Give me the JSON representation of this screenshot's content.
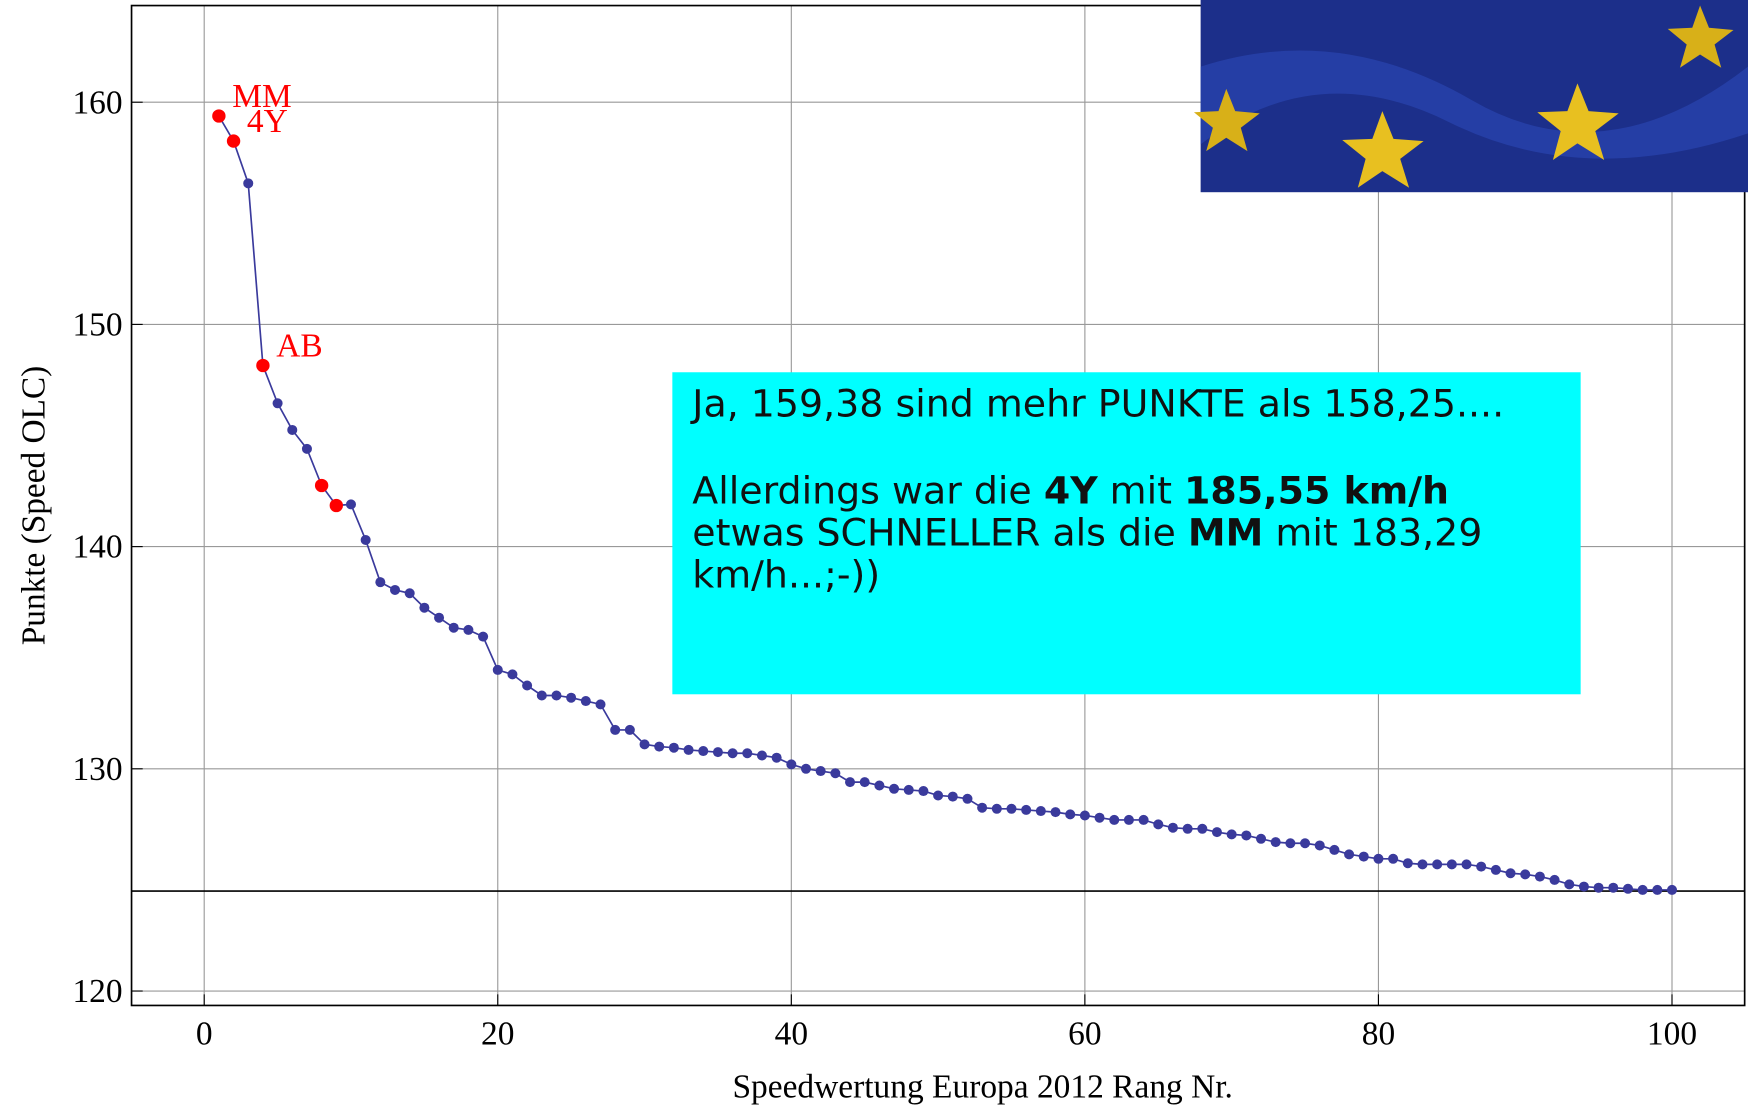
{
  "chart_data": {
    "type": "line",
    "xlabel": "Speedwertung Europa 2012 Rang Nr.",
    "ylabel": "Punkte (Speed OLC)",
    "x": [
      1,
      2,
      3,
      4,
      5,
      6,
      7,
      8,
      9,
      10,
      11,
      12,
      13,
      14,
      15,
      16,
      17,
      18,
      19,
      20,
      21,
      22,
      23,
      24,
      25,
      26,
      27,
      28,
      29,
      30,
      31,
      32,
      33,
      34,
      35,
      36,
      37,
      38,
      39,
      40,
      41,
      42,
      43,
      44,
      45,
      46,
      47,
      48,
      49,
      50,
      51,
      52,
      53,
      54,
      55,
      56,
      57,
      58,
      59,
      60,
      61,
      62,
      63,
      64,
      65,
      66,
      67,
      68,
      69,
      70,
      71,
      72,
      73,
      74,
      75,
      76,
      77,
      78,
      79,
      80,
      81,
      82,
      83,
      84,
      85,
      86,
      87,
      88,
      89,
      90,
      91,
      92,
      93,
      94,
      95,
      96,
      97,
      98,
      99,
      100
    ],
    "values": [
      159.38,
      158.25,
      156.35,
      148.15,
      146.45,
      145.25,
      144.4,
      142.75,
      141.85,
      141.9,
      140.3,
      138.4,
      138.05,
      137.9,
      137.25,
      136.8,
      136.35,
      136.25,
      135.95,
      134.45,
      134.25,
      133.75,
      133.3,
      133.3,
      133.2,
      133.05,
      132.9,
      131.75,
      131.75,
      131.1,
      131.0,
      130.95,
      130.85,
      130.8,
      130.75,
      130.7,
      130.7,
      130.6,
      130.5,
      130.2,
      130.0,
      129.9,
      129.8,
      129.4,
      129.4,
      129.25,
      129.1,
      129.05,
      129.0,
      128.8,
      128.75,
      128.65,
      128.25,
      128.2,
      128.2,
      128.15,
      128.1,
      128.05,
      127.95,
      127.9,
      127.8,
      127.7,
      127.7,
      127.7,
      127.5,
      127.35,
      127.3,
      127.3,
      127.15,
      127.05,
      127.0,
      126.85,
      126.7,
      126.65,
      126.65,
      126.55,
      126.35,
      126.15,
      126.05,
      125.95,
      125.95,
      125.75,
      125.7,
      125.7,
      125.7,
      125.7,
      125.6,
      125.45,
      125.3,
      125.25,
      125.15,
      125.0,
      124.8,
      124.7,
      124.65,
      124.65,
      124.6,
      124.55,
      124.55,
      124.55
    ],
    "color": "#3a3a9c",
    "highlight": {
      "color": "#ff0000",
      "x": [
        1,
        2,
        4,
        8,
        9
      ]
    },
    "point_labels": [
      {
        "x": 1,
        "text": "MM"
      },
      {
        "x": 2,
        "text": "4Y"
      },
      {
        "x": 4,
        "text": "AB"
      }
    ],
    "hline": 124.5,
    "xlim": [
      -4.95,
      104.95
    ],
    "ylim": [
      119.35,
      164.35
    ],
    "xticks": [
      0,
      20,
      40,
      60,
      80,
      100
    ],
    "yticks": [
      120,
      130,
      140,
      150,
      160
    ],
    "grid": true
  },
  "text_box": {
    "paragraphs": [
      [
        {
          "text": "Ja, 159,38 sind mehr PUNKTE als 158,25...."
        }
      ],
      [
        {
          "text": "Allerdings war die "
        },
        {
          "text": "4Y",
          "bold": true
        },
        {
          "text": " mit "
        },
        {
          "text": "185,55 km/h",
          "bold": true
        },
        {
          "text": " etwas SCHNELLER als die "
        },
        {
          "text": "MM",
          "bold": true
        },
        {
          "text": " mit 183,29 km/h...;-))"
        }
      ]
    ]
  }
}
